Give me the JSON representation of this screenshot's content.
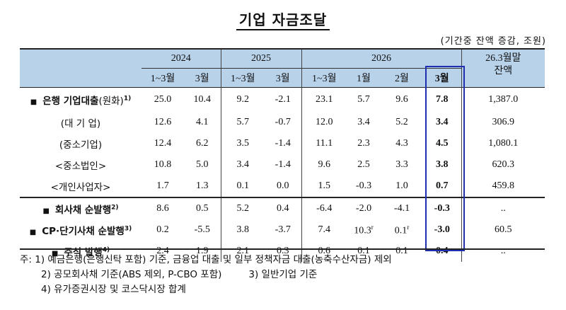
{
  "title": "기업 자금조달",
  "unit": "(기간중 잔액 증감, 조원)",
  "header": {
    "years": [
      "2024",
      "2025",
      "2026"
    ],
    "last_col": [
      "26.3월말",
      "잔액"
    ],
    "periods": [
      "1~3월",
      "3월",
      "1~3월",
      "3월",
      "1~3월",
      "1월",
      "2월",
      "3월"
    ]
  },
  "rows": [
    {
      "label": "은행 기업대출",
      "suffix": "(원화)",
      "sup": "1)",
      "values": [
        "25.0",
        "10.4",
        "9.2",
        "-2.1",
        "23.1",
        "5.7",
        "9.6",
        "7.8",
        "1,387.0"
      ],
      "notes": [
        "",
        "",
        "",
        "",
        "",
        "",
        "",
        "",
        ""
      ]
    },
    {
      "label": "(대 기 업)",
      "values": [
        "12.6",
        "4.1",
        "5.7",
        "-0.7",
        "12.0",
        "3.4",
        "5.2",
        "3.4",
        "306.9"
      ]
    },
    {
      "label": "(중소기업)",
      "values": [
        "12.4",
        "6.2",
        "3.5",
        "-1.4",
        "11.1",
        "2.3",
        "4.3",
        "4.5",
        "1,080.1"
      ]
    },
    {
      "label": "<중소법인>",
      "values": [
        "10.8",
        "5.0",
        "3.4",
        "-1.4",
        "9.6",
        "2.5",
        "3.3",
        "3.8",
        "620.3"
      ]
    },
    {
      "label": "<개인사업자>",
      "values": [
        "1.7",
        "1.3",
        "0.1",
        "0.0",
        "1.5",
        "-0.3",
        "1.0",
        "0.7",
        "459.8"
      ]
    },
    {
      "label": "회사채 순발행",
      "sup": "2)",
      "values": [
        "8.6",
        "0.5",
        "5.2",
        "0.4",
        "-6.4",
        "-2.0",
        "-4.1",
        "-0.3",
        ".."
      ]
    },
    {
      "label": "CP·단기사채 순발행",
      "sup": "3)",
      "values": [
        "0.2",
        "-5.5",
        "3.8",
        "-3.7",
        "7.4",
        "10.3",
        "0.1",
        "-3.0",
        "60.5"
      ],
      "value_sups": {
        "5": "r",
        "6": "r"
      }
    },
    {
      "label": "주식 발행",
      "sup": "4)",
      "values": [
        "2.4",
        "1.9",
        "2.1",
        "0.3",
        "0.6",
        "0.1",
        "0.1",
        "0.4",
        ".."
      ]
    }
  ],
  "notes": {
    "prefix": "주:",
    "n1": "1) 예금은행(은행신탁 포함) 기준, 금융업 대출 및 일부 정책자금 대출(농축수산자금) 제외",
    "n2": "2) 공모회사채 기준(ABS 제외, P-CBO 포함)",
    "n3": "3) 일반기업 기준",
    "n4": "4) 유가증권시장 및 코스닥시장 합계"
  },
  "colors": {
    "header_bg": "#b8d2ea",
    "highlight_box": "#1f2fb0"
  },
  "icons": {
    "bullet": "square-bullet-icon"
  }
}
